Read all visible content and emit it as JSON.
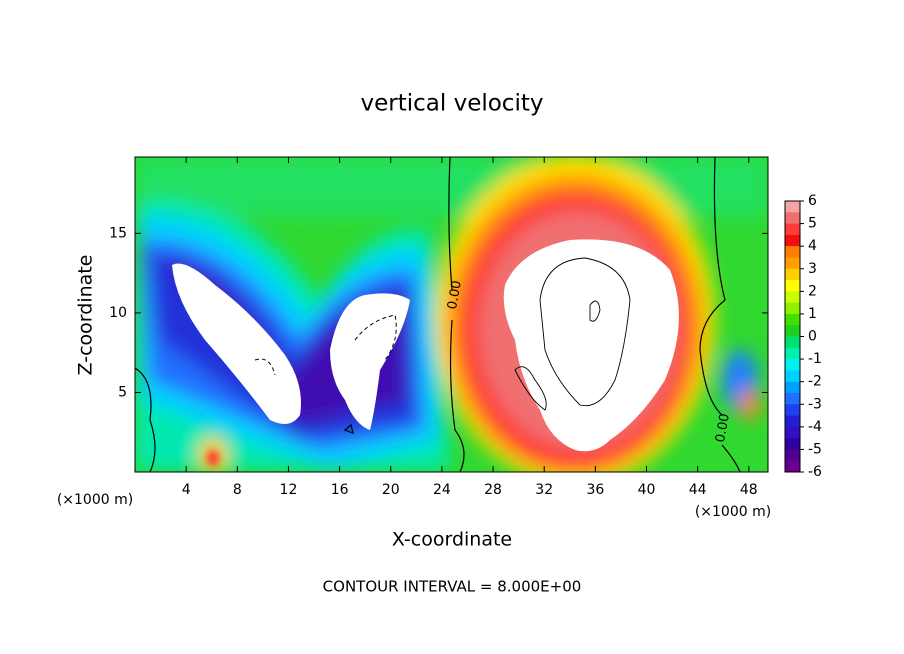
{
  "chart_data": {
    "type": "contour",
    "title": "vertical velocity",
    "x_label": "X-coordinate",
    "y_label": "Z-coordinate",
    "x_unit_left": "(×1000 m)",
    "x_unit_right": "(×1000 m)",
    "footer": "CONTOUR INTERVAL = 8.000E+00",
    "contour_labels": [
      "0.00",
      "0.00"
    ],
    "xlim": [
      0,
      49.5
    ],
    "ylim": [
      0,
      19.8
    ],
    "xticks": [
      4,
      8,
      12,
      16,
      20,
      24,
      28,
      32,
      36,
      40,
      44,
      48
    ],
    "yticks": [
      5,
      10,
      15
    ],
    "colorbar": {
      "ticks": [
        6,
        5,
        4,
        3,
        2,
        1,
        0,
        -1,
        -2,
        -3,
        -4,
        -5,
        -6
      ],
      "colors": [
        "#f5a3a3",
        "#f07070",
        "#ff3c3c",
        "#f01010",
        "#ff8000",
        "#ffa000",
        "#ffd000",
        "#ffff00",
        "#c8ff00",
        "#90f000",
        "#40e000",
        "#20d020",
        "#00e070",
        "#00f0b0",
        "#00f0f0",
        "#00d0ff",
        "#00a0ff",
        "#2070ff",
        "#2040f0",
        "#2020d0",
        "#3010c0",
        "#3000a0",
        "#500090",
        "#6a0090"
      ]
    }
  }
}
